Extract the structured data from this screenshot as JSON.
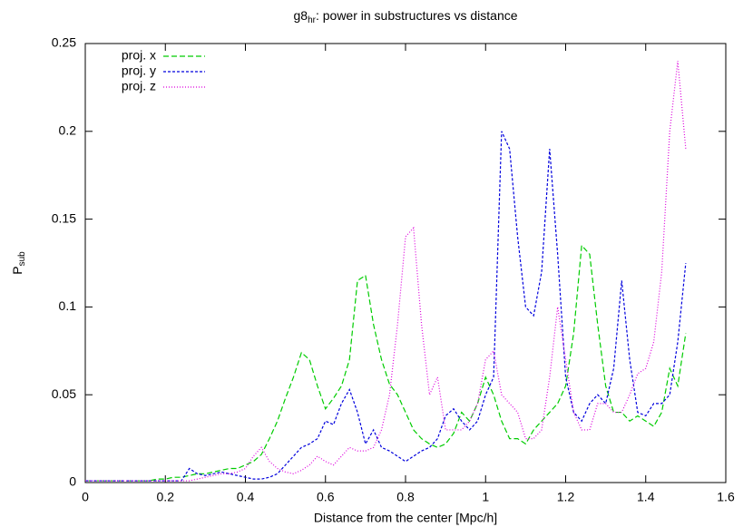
{
  "chart_data": {
    "type": "line",
    "title": {
      "main": "g8",
      "subscript": "hr",
      "rest": ": power in substructures vs distance"
    },
    "x_label": "Distance from the center [Mpc/h]",
    "y_label": {
      "main": "P",
      "subscript": "sub"
    },
    "legend": "top-left",
    "xlim": [
      0,
      1.6
    ],
    "xticks": [
      0,
      0.2,
      0.4,
      0.6,
      0.8,
      1,
      1.2,
      1.4,
      1.6
    ],
    "ylim": [
      0,
      0.25
    ],
    "yticks": [
      0,
      0.05,
      0.1,
      0.15,
      0.2,
      0.25
    ],
    "x": [
      0,
      0.02,
      0.04,
      0.06,
      0.08,
      0.1,
      0.12,
      0.14,
      0.16,
      0.18,
      0.2,
      0.22,
      0.24,
      0.26,
      0.28,
      0.3,
      0.32,
      0.34,
      0.36,
      0.38,
      0.4,
      0.42,
      0.44,
      0.46,
      0.48,
      0.5,
      0.52,
      0.54,
      0.56,
      0.58,
      0.6,
      0.62,
      0.64,
      0.66,
      0.68,
      0.7,
      0.72,
      0.74,
      0.76,
      0.78,
      0.8,
      0.82,
      0.84,
      0.86,
      0.88,
      0.9,
      0.92,
      0.94,
      0.96,
      0.98,
      1,
      1.02,
      1.04,
      1.06,
      1.08,
      1.1,
      1.12,
      1.14,
      1.16,
      1.18,
      1.2,
      1.22,
      1.24,
      1.26,
      1.28,
      1.3,
      1.32,
      1.34,
      1.36,
      1.38,
      1.4,
      1.42,
      1.44,
      1.46,
      1.48,
      1.5
    ],
    "series": [
      {
        "name": "proj. x",
        "color": "#00cc00",
        "dash": "6,3",
        "values": [
          0.001,
          0.001,
          0.001,
          0.001,
          0.001,
          0.001,
          0.001,
          0.001,
          0.001,
          0.002,
          0.002,
          0.003,
          0.003,
          0.004,
          0.005,
          0.005,
          0.006,
          0.007,
          0.008,
          0.008,
          0.01,
          0.012,
          0.016,
          0.025,
          0.035,
          0.048,
          0.06,
          0.074,
          0.07,
          0.055,
          0.042,
          0.048,
          0.055,
          0.07,
          0.115,
          0.118,
          0.09,
          0.07,
          0.056,
          0.05,
          0.04,
          0.03,
          0.025,
          0.022,
          0.02,
          0.022,
          0.028,
          0.04,
          0.035,
          0.045,
          0.06,
          0.05,
          0.035,
          0.025,
          0.025,
          0.022,
          0.03,
          0.035,
          0.04,
          0.045,
          0.055,
          0.085,
          0.135,
          0.13,
          0.09,
          0.055,
          0.04,
          0.04,
          0.035,
          0.038,
          0.035,
          0.032,
          0.04,
          0.065,
          0.055,
          0.085
        ]
      },
      {
        "name": "proj. y",
        "color": "#0000dd",
        "dash": "3,2",
        "values": [
          0.001,
          0.001,
          0.001,
          0.001,
          0.001,
          0.001,
          0.001,
          0.001,
          0.001,
          0.001,
          0.001,
          0.001,
          0.001,
          0.008,
          0.005,
          0.004,
          0.005,
          0.006,
          0.005,
          0.004,
          0.003,
          0.002,
          0.002,
          0.003,
          0.005,
          0.01,
          0.015,
          0.02,
          0.022,
          0.025,
          0.035,
          0.033,
          0.045,
          0.053,
          0.04,
          0.022,
          0.03,
          0.02,
          0.018,
          0.015,
          0.012,
          0.015,
          0.018,
          0.02,
          0.025,
          0.038,
          0.042,
          0.035,
          0.03,
          0.035,
          0.05,
          0.06,
          0.2,
          0.19,
          0.14,
          0.1,
          0.095,
          0.12,
          0.19,
          0.13,
          0.06,
          0.04,
          0.035,
          0.045,
          0.05,
          0.045,
          0.065,
          0.115,
          0.07,
          0.04,
          0.038,
          0.045,
          0.045,
          0.05,
          0.08,
          0.125
        ]
      },
      {
        "name": "proj. z",
        "color": "#dd00dd",
        "dash": "1,2",
        "values": [
          0.001,
          0.001,
          0.001,
          0.001,
          0.001,
          0.001,
          0.001,
          0.001,
          0.001,
          0.001,
          0.001,
          0.001,
          0.001,
          0.001,
          0.002,
          0.003,
          0.004,
          0.005,
          0.005,
          0.006,
          0.008,
          0.015,
          0.02,
          0.012,
          0.008,
          0.006,
          0.005,
          0.007,
          0.01,
          0.015,
          0.012,
          0.01,
          0.015,
          0.02,
          0.018,
          0.018,
          0.02,
          0.03,
          0.05,
          0.09,
          0.14,
          0.145,
          0.09,
          0.05,
          0.06,
          0.03,
          0.03,
          0.03,
          0.035,
          0.045,
          0.07,
          0.075,
          0.05,
          0.045,
          0.04,
          0.025,
          0.025,
          0.03,
          0.06,
          0.1,
          0.07,
          0.04,
          0.03,
          0.03,
          0.045,
          0.045,
          0.04,
          0.04,
          0.05,
          0.062,
          0.065,
          0.08,
          0.12,
          0.2,
          0.24,
          0.19
        ]
      }
    ]
  }
}
